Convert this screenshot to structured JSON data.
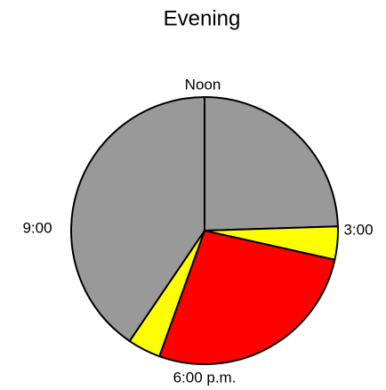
{
  "chart_data": {
    "type": "pie",
    "title": "Evening",
    "categories": [
      null,
      null,
      null,
      null,
      null
    ],
    "values": [
      24.5,
      4,
      27,
      4,
      40.5
    ],
    "colors": [
      "#999999",
      "#ffff00",
      "#ff0000",
      "#ffff00",
      "#999999"
    ],
    "annotations": [
      "Noon",
      "3:00",
      "6:00 p.m.",
      "9:00"
    ]
  }
}
